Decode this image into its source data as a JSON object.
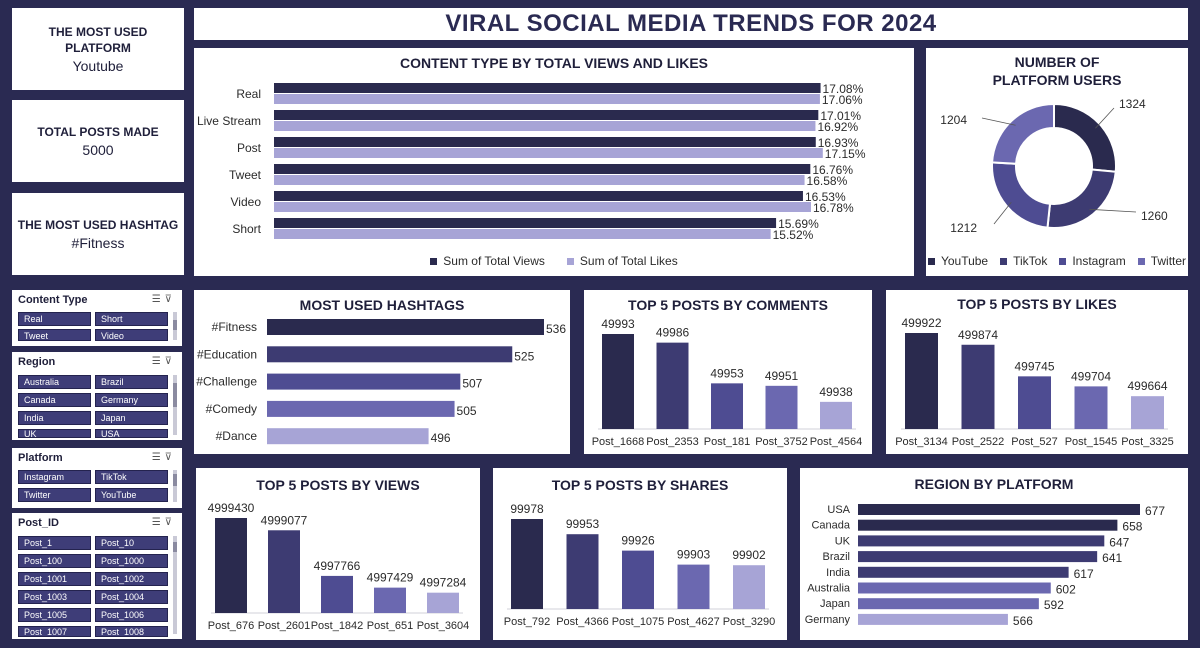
{
  "header": {
    "title": "VIRAL SOCIAL MEDIA TRENDS FOR 2024"
  },
  "kpis": [
    {
      "label": "THE MOST USED PLATFORM",
      "value": "Youtube"
    },
    {
      "label": "TOTAL POSTS MADE",
      "value": "5000"
    },
    {
      "label": "THE MOST USED HASHTAG",
      "value": "#Fitness"
    }
  ],
  "colors": {
    "navy": "#2a2a52",
    "views": "#2a2a4e",
    "likes": "#a7a4d6",
    "shades": [
      "#2a2a4e",
      "#3d3b72",
      "#4e4c92",
      "#6b68b0",
      "#a7a4d6"
    ]
  },
  "slicers": {
    "content_type": {
      "title": "Content Type",
      "items": [
        "Real",
        "Short",
        "Tweet",
        "Video"
      ]
    },
    "region": {
      "title": "Region",
      "items": [
        "Australia",
        "Brazil",
        "Canada",
        "Germany",
        "India",
        "Japan",
        "UK",
        "USA"
      ]
    },
    "platform": {
      "title": "Platform",
      "items": [
        "Instagram",
        "TikTok",
        "Twitter",
        "YouTube"
      ]
    },
    "post_id": {
      "title": "Post_ID",
      "items": [
        "Post_1",
        "Post_10",
        "Post_100",
        "Post_1000",
        "Post_1001",
        "Post_1002",
        "Post_1003",
        "Post_1004",
        "Post_1005",
        "Post_1006",
        "Post_1007",
        "Post_1008"
      ]
    }
  },
  "chart_data": [
    {
      "id": "content_type",
      "type": "bar",
      "orientation": "horizontal",
      "title": "CONTENT TYPE BY TOTAL VIEWS AND LIKES",
      "categories": [
        "Real",
        "Live Stream",
        "Post",
        "Tweet",
        "Video",
        "Short"
      ],
      "series": [
        {
          "name": "Sum of Total Views",
          "values": [
            17.08,
            17.01,
            16.93,
            16.76,
            16.53,
            15.69
          ],
          "labels": [
            "17.08%",
            "17.01%",
            "16.93%",
            "16.76%",
            "16.53%",
            "15.69%"
          ]
        },
        {
          "name": "Sum of Total Likes",
          "values": [
            17.06,
            16.92,
            17.15,
            16.58,
            16.78,
            15.52
          ],
          "labels": [
            "17.06%",
            "16.92%",
            "17.15%",
            "16.58%",
            "16.78%",
            "15.52%"
          ]
        }
      ],
      "legend": "bottom"
    },
    {
      "id": "platform_users",
      "type": "pie",
      "donut": true,
      "title": "NUMBER OF PLATFORM USERS",
      "categories": [
        "YouTube",
        "TikTok",
        "Instagram",
        "Twitter"
      ],
      "values": [
        1324,
        1260,
        1212,
        1204
      ],
      "labels": [
        "1324",
        "1260",
        "1212",
        "1204"
      ],
      "legend": "bottom"
    },
    {
      "id": "hashtags",
      "type": "bar",
      "orientation": "horizontal",
      "title": "MOST USED HASHTAGS",
      "categories": [
        "#Fitness",
        "#Education",
        "#Challenge",
        "#Comedy",
        "#Dance"
      ],
      "values": [
        536,
        525,
        507,
        505,
        496
      ],
      "labels": [
        "536",
        "525",
        "507",
        "505",
        "496"
      ]
    },
    {
      "id": "top_comments",
      "type": "bar",
      "title": "TOP 5 POSTS BY COMMENTS",
      "categories": [
        "Post_1668",
        "Post_2353",
        "Post_181",
        "Post_3752",
        "Post_4564"
      ],
      "values": [
        49993,
        49986,
        49953,
        49951,
        49938
      ],
      "labels": [
        "49993",
        "49986",
        "49953",
        "49951",
        "49938"
      ]
    },
    {
      "id": "top_likes",
      "type": "bar",
      "title": "TOP 5 POSTS BY LIKES",
      "categories": [
        "Post_3134",
        "Post_2522",
        "Post_527",
        "Post_1545",
        "Post_3325"
      ],
      "values": [
        499922,
        499874,
        499745,
        499704,
        499664
      ],
      "labels": [
        "499922",
        "499874",
        "499745",
        "499704",
        "499664"
      ]
    },
    {
      "id": "top_views",
      "type": "bar",
      "title": "TOP 5 POSTS BY VIEWS",
      "categories": [
        "Post_676",
        "Post_2601",
        "Post_1842",
        "Post_651",
        "Post_3604"
      ],
      "values": [
        4999430,
        4999077,
        4997766,
        4997429,
        4997284
      ],
      "labels": [
        "4999430",
        "4999077",
        "4997766",
        "4997429",
        "4997284"
      ]
    },
    {
      "id": "top_shares",
      "type": "bar",
      "title": "TOP 5 POSTS BY SHARES",
      "categories": [
        "Post_792",
        "Post_4366",
        "Post_1075",
        "Post_4627",
        "Post_3290"
      ],
      "values": [
        99978,
        99953,
        99926,
        99903,
        99902
      ],
      "labels": [
        "99978",
        "99953",
        "99926",
        "99903",
        "99902"
      ]
    },
    {
      "id": "region_platform",
      "type": "bar",
      "orientation": "horizontal",
      "title": "REGION BY PLATFORM",
      "categories": [
        "USA",
        "Canada",
        "UK",
        "Brazil",
        "India",
        "Australia",
        "Japan",
        "Germany"
      ],
      "values": [
        677,
        658,
        647,
        641,
        617,
        602,
        592,
        566
      ],
      "labels": [
        "677",
        "658",
        "647",
        "641",
        "617",
        "602",
        "592",
        "566"
      ]
    }
  ]
}
